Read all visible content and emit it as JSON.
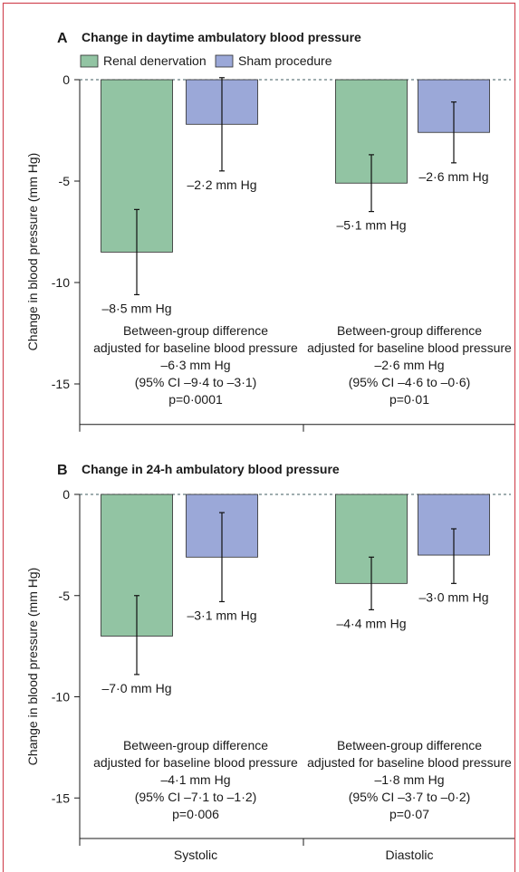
{
  "chart_data": [
    {
      "type": "bar",
      "panel_letter": "A",
      "title": "Change in daytime ambulatory blood pressure",
      "ylabel": "Change in blood pressure (mm Hg)",
      "ylim": [
        -17,
        0
      ],
      "yticks": [
        0,
        -5,
        -10,
        -15
      ],
      "ytick_labels": [
        "0",
        "-5",
        "-10",
        "-15"
      ],
      "reference_line": 0,
      "grid": false,
      "legend_position": "top-left",
      "series": [
        {
          "name": "Renal denervation",
          "color": "#92c4a3",
          "values": [
            -8.5,
            -5.1
          ],
          "err_low": [
            -10.6,
            -6.5
          ],
          "err_high": [
            -6.4,
            -3.7
          ],
          "data_labels": [
            "–8·5 mm Hg",
            "–5·1 mm Hg"
          ]
        },
        {
          "name": "Sham procedure",
          "color": "#9ba8d8",
          "values": [
            -2.2,
            -2.6
          ],
          "err_low": [
            -4.5,
            -4.1
          ],
          "err_high": [
            0.1,
            -1.1
          ],
          "data_labels": [
            "–2·2 mm Hg",
            "–2·6 mm Hg"
          ]
        }
      ],
      "annotations": [
        [
          "Between-group difference",
          "adjusted for baseline blood pressure",
          "–6·3 mm Hg",
          "(95% CI –9·4 to –3·1)",
          "p=0·0001"
        ],
        [
          "Between-group difference",
          "adjusted for baseline blood pressure",
          "–2·6 mm Hg",
          "(95% CI –4·6 to –0·6)",
          "p=0·01"
        ]
      ]
    },
    {
      "type": "bar",
      "panel_letter": "B",
      "title": "Change in 24-h ambulatory blood pressure",
      "ylabel": "Change in blood pressure (mm Hg)",
      "categories": [
        "Systolic",
        "Diastolic"
      ],
      "ylim": [
        -17,
        0
      ],
      "yticks": [
        0,
        -5,
        -10,
        -15
      ],
      "ytick_labels": [
        "0",
        "-5",
        "-10",
        "-15"
      ],
      "reference_line": 0,
      "grid": false,
      "series": [
        {
          "color": "#92c4a3",
          "values": [
            -7.0,
            -4.4
          ],
          "err_low": [
            -8.9,
            -5.7
          ],
          "err_high": [
            -5.0,
            -3.1
          ],
          "data_labels": [
            "–7·0 mm Hg",
            "–4·4 mm Hg"
          ]
        },
        {
          "color": "#9ba8d8",
          "values": [
            -3.1,
            -3.0
          ],
          "err_low": [
            -5.3,
            -4.4
          ],
          "err_high": [
            -0.9,
            -1.7
          ],
          "data_labels": [
            "–3·1 mm Hg",
            "–3·0 mm Hg"
          ]
        }
      ],
      "annotations": [
        [
          "Between-group difference",
          "adjusted for baseline blood pressure",
          "–4·1 mm Hg",
          "(95% CI –7·1 to –1·2)",
          "p=0·006"
        ],
        [
          "Between-group difference",
          "adjusted for baseline blood pressure",
          "–1·8 mm Hg",
          "(95% CI –3·7 to –0·2)",
          "p=0·07"
        ]
      ]
    }
  ]
}
